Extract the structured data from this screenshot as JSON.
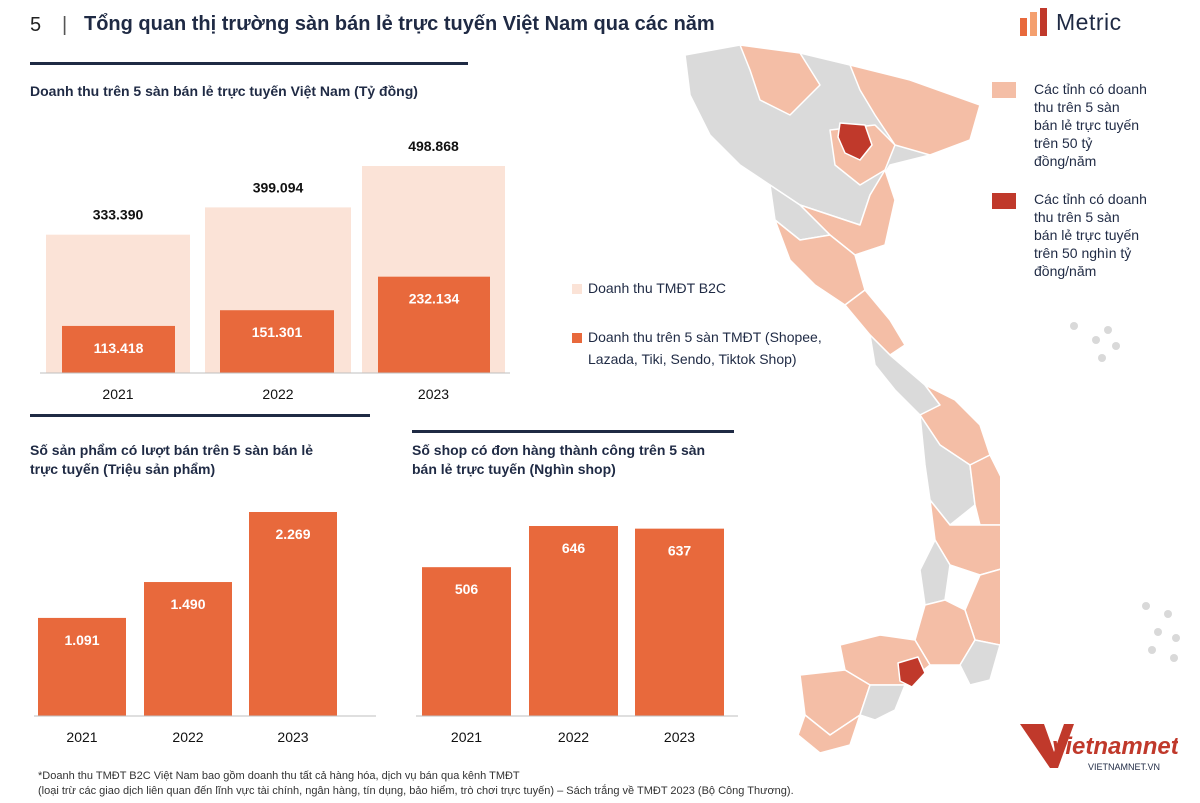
{
  "header": {
    "page_number": "5",
    "separator": "|",
    "title": "Tổng quan thị trường sàn bán lẻ trực tuyến Việt Nam qua các năm",
    "brand": "Metric"
  },
  "legend": {
    "b2c_label": "Doanh thu TMĐT B2C",
    "platform_label_line1": "Doanh thu trên 5 sàn TMĐT (Shopee,",
    "platform_label_line2": "Lazada, Tiki, Sendo, Tiktok Shop)"
  },
  "map_legend": {
    "light_label": [
      "Các tỉnh có doanh",
      "thu trên 5 sàn",
      "bán lẻ trực tuyến",
      "trên 50 tỷ",
      "đồng/năm"
    ],
    "dark_label": [
      "Các tỉnh có doanh",
      "thu trên 5 sàn",
      "bán lẻ trực tuyến",
      "trên 50 nghìn tỷ",
      "đồng/năm"
    ]
  },
  "footnote": {
    "line1": "*Doanh thu TMĐT B2C Việt Nam bao gồm doanh thu tất cả hàng hóa, dịch vụ bán qua kênh TMĐT",
    "line2": "(loại trừ các giao dịch liên quan đến lĩnh vực tài chính, ngân hàng, tín dụng, bảo hiểm, trò chơi trực tuyến) – Sách trắng về TMĐT 2023 (Bộ Công Thương)."
  },
  "watermark": {
    "brand": "vietnamnet",
    "url": "VIETNAMNET.VN"
  },
  "colors": {
    "light_bar": "#fbe3d7",
    "dark_bar": "#e8693c",
    "navy": "#1f2a44",
    "map_grey": "#dadada",
    "map_light": "#f4bea6",
    "map_dark": "#c0392b"
  },
  "chart_data": [
    {
      "type": "bar",
      "title": "Doanh thu trên 5 sàn bán lẻ trực tuyến Việt Nam (Tỷ đồng)",
      "categories": [
        "2021",
        "2022",
        "2023"
      ],
      "series": [
        {
          "name": "Doanh thu TMĐT B2C",
          "values": [
            333390,
            399094,
            498868
          ],
          "labels": [
            "333.390",
            "399.094",
            "498.868"
          ]
        },
        {
          "name": "Doanh thu trên 5 sàn TMĐT (Shopee, Lazada, Tiki, Sendo, Tiktok Shop)",
          "values": [
            113418,
            151301,
            232134
          ],
          "labels": [
            "113.418",
            "151.301",
            "232.134"
          ]
        }
      ],
      "ylim": [
        0,
        600000
      ]
    },
    {
      "type": "bar",
      "title": "Số sản phẩm có lượt bán trên 5 sàn bán lẻ trực tuyến (Triệu sản phẩm)",
      "title_lines": [
        "Số sản phẩm có lượt bán trên 5 sàn bán lẻ",
        "trực tuyến (Triệu sản phẩm)"
      ],
      "categories": [
        "2021",
        "2022",
        "2023"
      ],
      "values": [
        1091,
        1490,
        2269
      ],
      "labels": [
        "1.091",
        "1.490",
        "2.269"
      ],
      "ylim": [
        0,
        2269
      ]
    },
    {
      "type": "bar",
      "title": "Số shop có đơn hàng thành công trên 5 sàn bán lẻ trực tuyến (Nghìn shop)",
      "title_lines": [
        "Số shop có đơn hàng thành công trên 5 sàn",
        "bán lẻ trực tuyến (Nghìn shop)"
      ],
      "categories": [
        "2021",
        "2022",
        "2023"
      ],
      "values": [
        506,
        646,
        637
      ],
      "labels": [
        "506",
        "646",
        "637"
      ],
      "ylim": [
        0,
        646
      ]
    }
  ]
}
